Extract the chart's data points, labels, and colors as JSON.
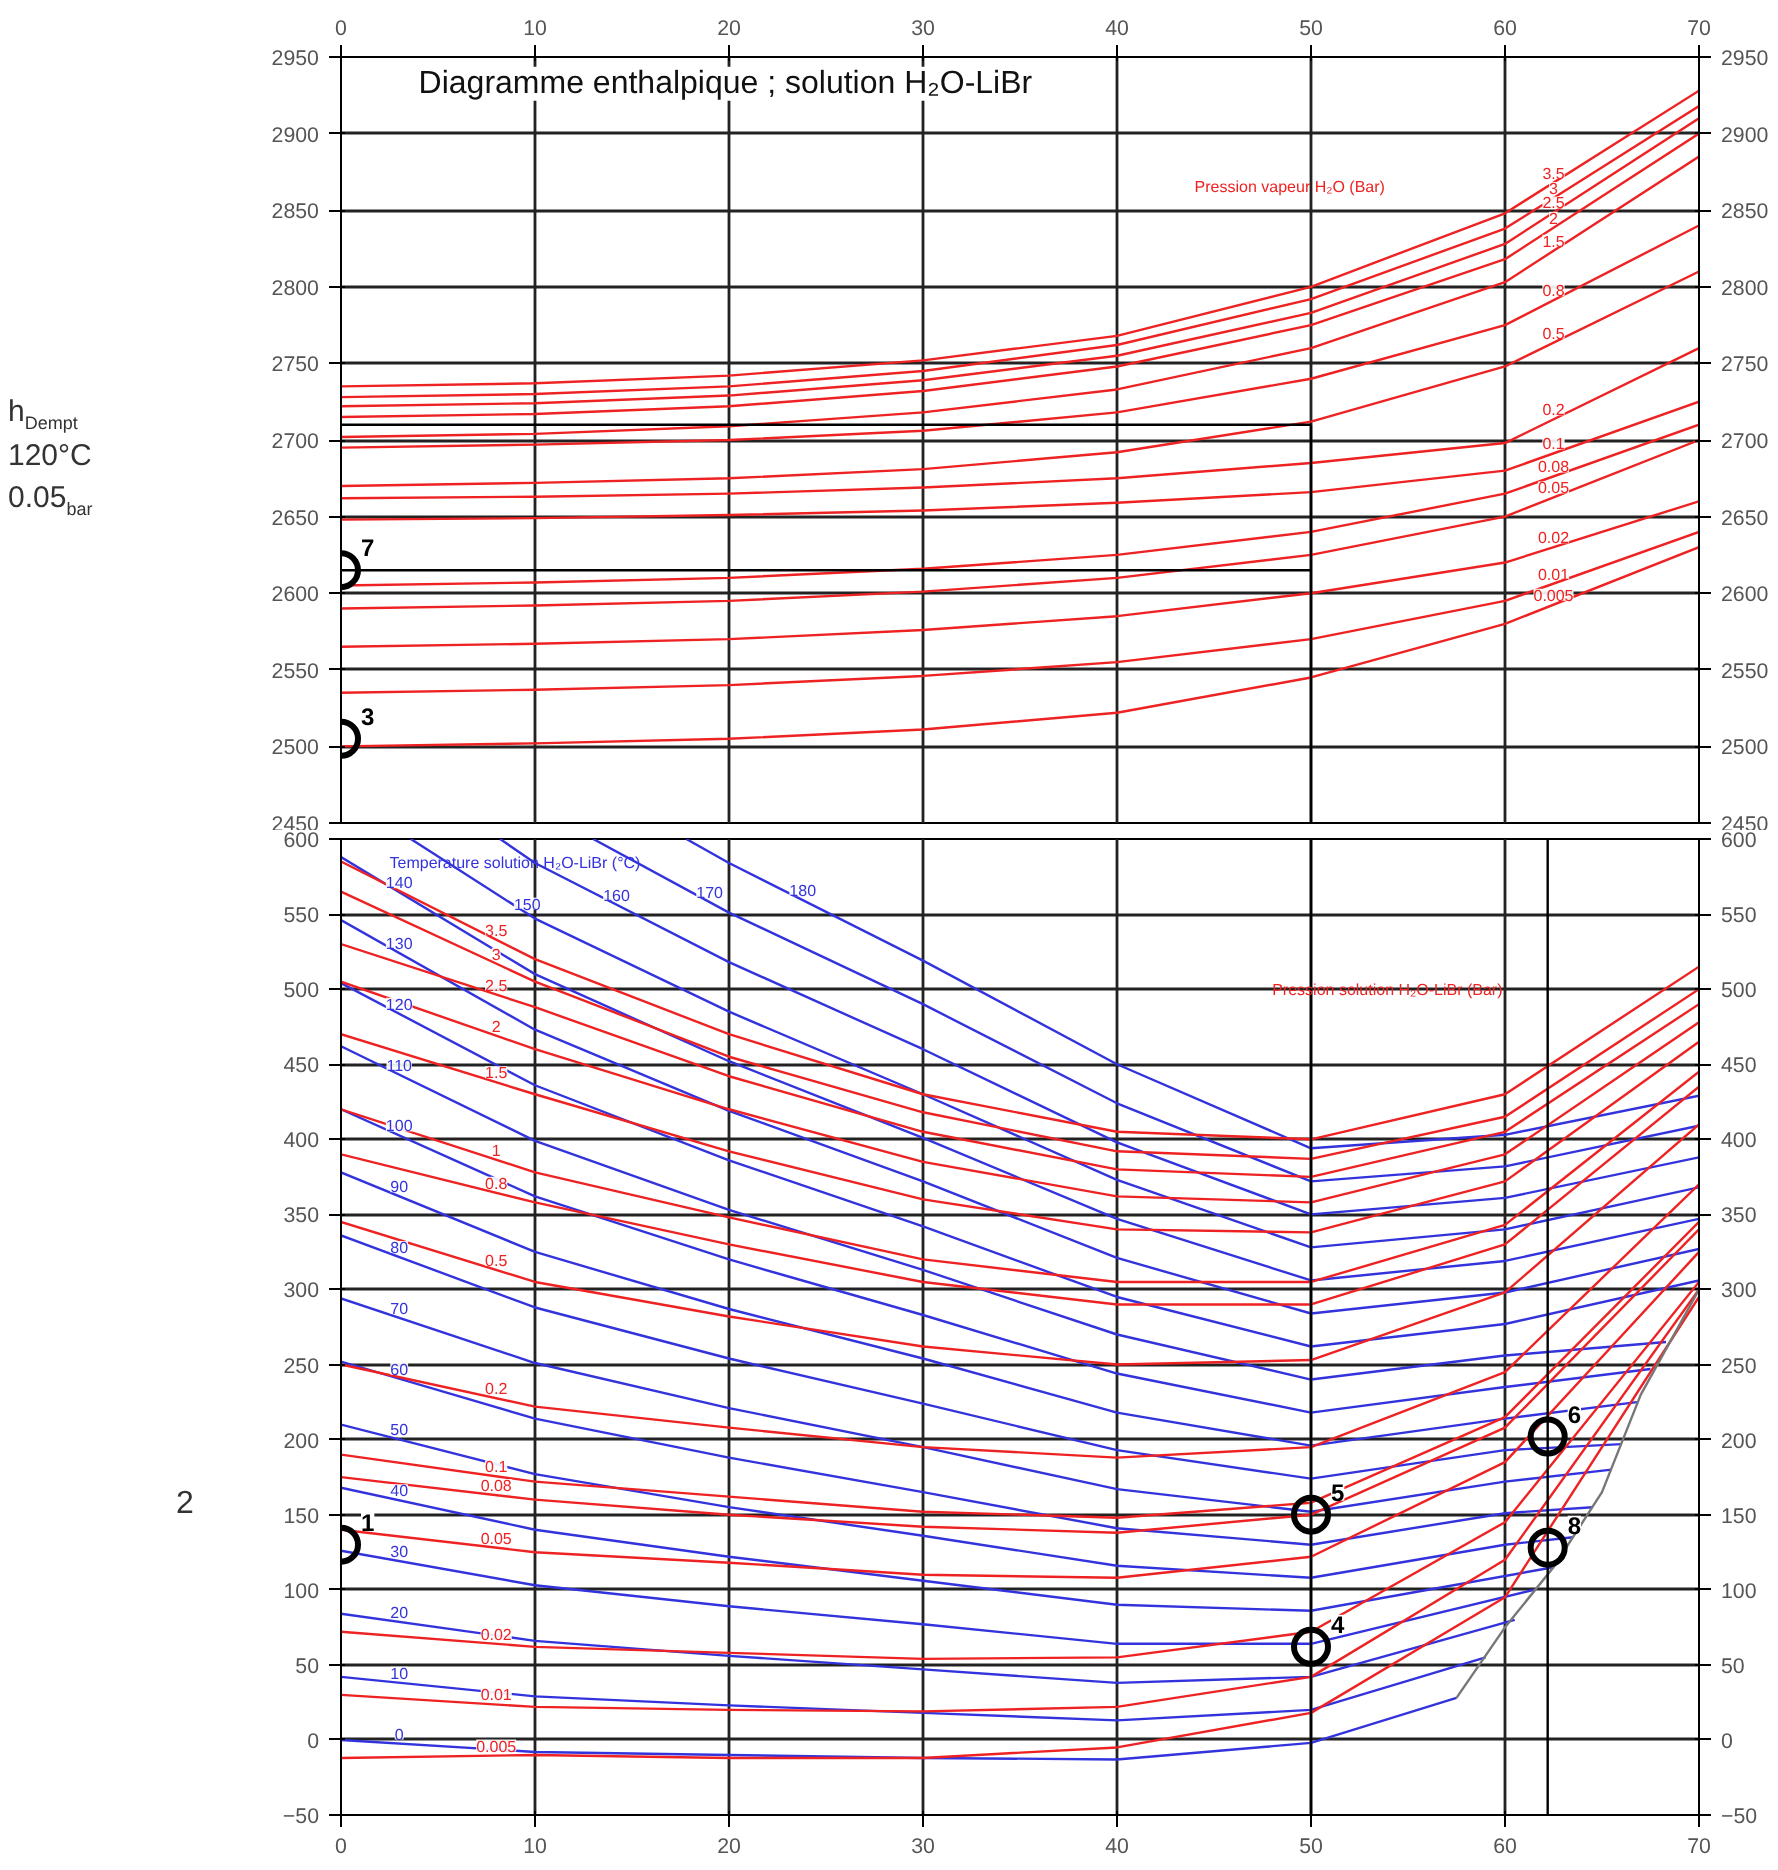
{
  "chart_data": [
    {
      "type": "line",
      "title": "Diagramme enthalpique ; solution H₂O-LiBr",
      "xlim": [
        0,
        70
      ],
      "x2lim": [
        0,
        70
      ],
      "x2ticks": [
        0,
        10,
        20,
        30,
        40,
        50,
        60,
        70
      ],
      "ylim": [
        2450,
        2950
      ],
      "yticks": [
        2450,
        2500,
        2550,
        2600,
        2650,
        2700,
        2750,
        2800,
        2850,
        2900,
        2950
      ],
      "y2lim": [
        2450,
        2950
      ],
      "y2ticks": [
        2450,
        2500,
        2550,
        2600,
        2650,
        2700,
        2750,
        2800,
        2850,
        2900,
        2950
      ],
      "tick_labels": "y",
      "grid": true,
      "series": [
        {
          "name": "3.5",
          "color": "#ee2222",
          "x": [
            0,
            10,
            20,
            30,
            40,
            50,
            60,
            70
          ],
          "values": [
            2735,
            2737,
            2742,
            2752,
            2768,
            2800,
            2848,
            2928
          ]
        },
        {
          "name": "3",
          "color": "#ee2222",
          "x": [
            0,
            10,
            20,
            30,
            40,
            50,
            60,
            70
          ],
          "values": [
            2728,
            2730,
            2735,
            2745,
            2762,
            2792,
            2838,
            2918
          ]
        },
        {
          "name": "2.5",
          "color": "#ee2222",
          "x": [
            0,
            10,
            20,
            30,
            40,
            50,
            60,
            70
          ],
          "values": [
            2722,
            2724,
            2729,
            2739,
            2755,
            2783,
            2828,
            2910
          ]
        },
        {
          "name": "2",
          "color": "#ee2222",
          "x": [
            0,
            10,
            20,
            30,
            40,
            50,
            60,
            70
          ],
          "values": [
            2715,
            2717,
            2722,
            2732,
            2748,
            2775,
            2818,
            2900
          ]
        },
        {
          "name": "1.5",
          "color": "#ee2222",
          "x": [
            0,
            10,
            20,
            30,
            40,
            50,
            60,
            70
          ],
          "values": [
            2702,
            2704,
            2709,
            2718,
            2733,
            2760,
            2803,
            2885
          ]
        },
        {
          "name": "0.8",
          "color": "#ee2222",
          "x": [
            0,
            10,
            20,
            30,
            40,
            50,
            60,
            70
          ],
          "values": [
            2695,
            2697,
            2700,
            2706,
            2718,
            2740,
            2775,
            2840
          ]
        },
        {
          "name": "0.5",
          "color": "#ee2222",
          "x": [
            0,
            10,
            20,
            30,
            40,
            50,
            60,
            70
          ],
          "values": [
            2670,
            2672,
            2675,
            2681,
            2692,
            2712,
            2748,
            2810
          ]
        },
        {
          "name": "0.2",
          "color": "#ee2222",
          "x": [
            0,
            10,
            20,
            30,
            40,
            50,
            60,
            70
          ],
          "values": [
            2662,
            2663,
            2665,
            2669,
            2675,
            2685,
            2698,
            2760
          ]
        },
        {
          "name": "0.1",
          "color": "#ee2222",
          "x": [
            0,
            10,
            20,
            30,
            40,
            50,
            60,
            70
          ],
          "values": [
            2648,
            2649,
            2651,
            2654,
            2659,
            2666,
            2680,
            2725
          ]
        },
        {
          "name": "0.08",
          "color": "#ee2222",
          "x": [
            0,
            10,
            20,
            30,
            40,
            50,
            60,
            70
          ],
          "values": [
            2605,
            2607,
            2610,
            2616,
            2625,
            2640,
            2665,
            2710
          ]
        },
        {
          "name": "0.05",
          "color": "#ee2222",
          "x": [
            0,
            10,
            20,
            30,
            40,
            50,
            60,
            70
          ],
          "values": [
            2590,
            2592,
            2595,
            2601,
            2610,
            2625,
            2650,
            2700
          ]
        },
        {
          "name": "0.02",
          "color": "#ee2222",
          "x": [
            0,
            10,
            20,
            30,
            40,
            50,
            60,
            70
          ],
          "values": [
            2565,
            2567,
            2570,
            2576,
            2585,
            2600,
            2620,
            2660
          ]
        },
        {
          "name": "0.01",
          "color": "#ee2222",
          "x": [
            0,
            10,
            20,
            30,
            40,
            50,
            60,
            70
          ],
          "values": [
            2535,
            2537,
            2540,
            2546,
            2555,
            2570,
            2595,
            2640
          ]
        },
        {
          "name": "0.005",
          "color": "#ee2222",
          "x": [
            0,
            10,
            20,
            30,
            40,
            50,
            60,
            70
          ],
          "values": [
            2500,
            2502,
            2505,
            2511,
            2522,
            2545,
            2580,
            2630
          ]
        },
        {
          "color": "#000000",
          "x": [
            0,
            50
          ],
          "values": [
            2615,
            2615
          ]
        },
        {
          "color": "#000000",
          "x": [
            0,
            50
          ],
          "values": [
            2710,
            2710
          ]
        },
        {
          "color": "#000000",
          "x": [
            50,
            50
          ],
          "values": [
            2710,
            2450
          ]
        }
      ],
      "annotations": [
        {
          "text": "7",
          "x": 0,
          "y": 2615
        },
        {
          "text": "3",
          "x": 0,
          "y": 2505
        },
        "Pression vapeur H₂O (Bar)",
        "h$_{Dempt}$",
        "120°C",
        "0.05$_{bar}$"
      ]
    },
    {
      "type": "line",
      "xlim": [
        0,
        70
      ],
      "xticks": [
        0,
        10,
        20,
        30,
        40,
        50,
        60,
        70
      ],
      "ylim": [
        -50,
        600
      ],
      "yticks": [
        -50,
        0,
        50,
        100,
        150,
        200,
        250,
        300,
        350,
        400,
        450,
        500,
        550,
        600
      ],
      "y2lim": [
        -50,
        600
      ],
      "y2ticks": [
        -50,
        0,
        50,
        100,
        150,
        200,
        250,
        300,
        350,
        400,
        450,
        500,
        550,
        600
      ],
      "grid": true,
      "series": [
        {
          "name": "0",
          "color": "#3333dd",
          "x": [
            0,
            10,
            20,
            30,
            40,
            50,
            57.5
          ],
          "values": [
            0,
            -8,
            -10,
            -12,
            -13,
            -2,
            28
          ]
        },
        {
          "name": "10",
          "color": "#3333dd",
          "x": [
            0,
            10,
            20,
            30,
            40,
            50,
            59
          ],
          "values": [
            42,
            29,
            23,
            18,
            13,
            20,
            55
          ]
        },
        {
          "name": "20",
          "color": "#3333dd",
          "x": [
            0,
            10,
            20,
            30,
            40,
            50,
            60.5
          ],
          "values": [
            84,
            66,
            56,
            47,
            38,
            42,
            80
          ]
        },
        {
          "name": "30",
          "color": "#3333dd",
          "x": [
            0,
            10,
            20,
            30,
            40,
            50,
            61.5
          ],
          "values": [
            126,
            103,
            89,
            77,
            64,
            64,
            100
          ]
        },
        {
          "name": "40",
          "color": "#3333dd",
          "x": [
            0,
            10,
            20,
            30,
            40,
            50,
            62.5
          ],
          "values": [
            168,
            140,
            122,
            106,
            90,
            86,
            115
          ]
        },
        {
          "name": "50",
          "color": "#3333dd",
          "x": [
            0,
            10,
            20,
            30,
            40,
            50,
            60,
            63.5
          ],
          "values": [
            210,
            177,
            155,
            136,
            116,
            108,
            130,
            135
          ]
        },
        {
          "name": "60",
          "color": "#3333dd",
          "x": [
            0,
            10,
            20,
            30,
            40,
            50,
            60,
            64.5
          ],
          "values": [
            252,
            214,
            188,
            165,
            141,
            130,
            151,
            155
          ]
        },
        {
          "name": "70",
          "color": "#3333dd",
          "x": [
            0,
            10,
            20,
            30,
            40,
            50,
            60,
            65.5
          ],
          "values": [
            294,
            251,
            221,
            195,
            167,
            152,
            172,
            180
          ]
        },
        {
          "name": "80",
          "color": "#3333dd",
          "x": [
            0,
            10,
            20,
            30,
            40,
            50,
            60,
            66
          ],
          "values": [
            336,
            288,
            254,
            224,
            193,
            174,
            193,
            197
          ]
        },
        {
          "name": "90",
          "color": "#3333dd",
          "x": [
            0,
            10,
            20,
            30,
            40,
            50,
            60,
            66.8
          ],
          "values": [
            378,
            325,
            287,
            254,
            218,
            196,
            214,
            225
          ]
        },
        {
          "name": "100",
          "color": "#3333dd",
          "x": [
            0,
            10,
            20,
            30,
            40,
            50,
            60,
            67.5
          ],
          "values": [
            420,
            362,
            320,
            283,
            244,
            218,
            235,
            247
          ]
        },
        {
          "name": "110",
          "color": "#3333dd",
          "x": [
            0,
            10,
            20,
            30,
            40,
            50,
            60,
            68.3
          ],
          "values": [
            462,
            399,
            353,
            313,
            270,
            240,
            256,
            265
          ]
        },
        {
          "name": "120",
          "color": "#3333dd",
          "x": [
            0,
            10,
            20,
            30,
            40,
            50,
            60,
            70
          ],
          "values": [
            504,
            436,
            386,
            342,
            295,
            262,
            277,
            306
          ]
        },
        {
          "name": "130",
          "color": "#3333dd",
          "x": [
            0,
            10,
            20,
            30,
            40,
            50,
            60,
            70
          ],
          "values": [
            546,
            473,
            419,
            372,
            321,
            284,
            298,
            327
          ]
        },
        {
          "name": "140",
          "color": "#3333dd",
          "x": [
            0,
            10,
            20,
            30,
            40,
            50,
            60,
            70
          ],
          "values": [
            588,
            510,
            452,
            401,
            347,
            306,
            319,
            347
          ]
        },
        {
          "name": "150",
          "color": "#3333dd",
          "x": [
            3.6,
            10,
            20,
            30,
            40,
            50,
            60,
            70
          ],
          "values": [
            600,
            547,
            485,
            430,
            373,
            328,
            340,
            368
          ]
        },
        {
          "name": "160",
          "color": "#3333dd",
          "x": [
            8.2,
            10,
            20,
            30,
            40,
            50,
            60,
            70
          ],
          "values": [
            600,
            584,
            518,
            460,
            398,
            350,
            361,
            388
          ]
        },
        {
          "name": "170",
          "color": "#3333dd",
          "x": [
            13,
            20,
            30,
            40,
            50,
            60,
            70
          ],
          "values": [
            600,
            551,
            490,
            424,
            372,
            382,
            409
          ]
        },
        {
          "name": "180",
          "color": "#3333dd",
          "x": [
            17.8,
            20,
            30,
            40,
            50,
            60,
            70
          ],
          "values": [
            600,
            584,
            519,
            450,
            394,
            403,
            429
          ]
        },
        {
          "name": "3.5",
          "color": "#ee2222",
          "x": [
            0,
            10,
            20,
            30,
            40,
            50,
            60,
            70
          ],
          "values": [
            585,
            520,
            470,
            430,
            405,
            400,
            430,
            515
          ]
        },
        {
          "name": "3",
          "color": "#ee2222",
          "x": [
            0,
            10,
            20,
            30,
            40,
            50,
            60,
            70
          ],
          "values": [
            565,
            505,
            455,
            418,
            392,
            387,
            415,
            500
          ]
        },
        {
          "name": "2.5",
          "color": "#ee2222",
          "x": [
            0,
            10,
            20,
            30,
            40,
            50,
            60,
            70
          ],
          "values": [
            530,
            488,
            442,
            405,
            380,
            375,
            405,
            490
          ]
        },
        {
          "name": "2",
          "color": "#ee2222",
          "x": [
            0,
            10,
            20,
            30,
            40,
            50,
            60,
            70
          ],
          "values": [
            505,
            460,
            420,
            385,
            362,
            358,
            390,
            478
          ]
        },
        {
          "name": "1.5",
          "color": "#ee2222",
          "x": [
            0,
            10,
            20,
            30,
            40,
            50,
            60,
            70
          ],
          "values": [
            470,
            430,
            392,
            360,
            340,
            338,
            372,
            465
          ]
        },
        {
          "name": "1",
          "color": "#ee2222",
          "x": [
            0,
            10,
            20,
            30,
            40,
            50,
            60,
            70
          ],
          "values": [
            420,
            378,
            348,
            320,
            305,
            305,
            343,
            445
          ]
        },
        {
          "name": "0.8",
          "color": "#ee2222",
          "x": [
            0,
            10,
            20,
            30,
            40,
            50,
            60,
            70
          ],
          "values": [
            390,
            358,
            330,
            305,
            290,
            290,
            330,
            435
          ]
        },
        {
          "name": "0.5",
          "color": "#ee2222",
          "x": [
            0,
            10,
            20,
            30,
            40,
            50,
            60,
            70
          ],
          "values": [
            345,
            305,
            282,
            262,
            250,
            253,
            298,
            410
          ]
        },
        {
          "name": "0.2",
          "color": "#ee2222",
          "x": [
            0,
            10,
            20,
            30,
            40,
            50,
            60,
            70
          ],
          "values": [
            250,
            222,
            208,
            195,
            188,
            195,
            245,
            370
          ]
        },
        {
          "name": "0.1",
          "color": "#ee2222",
          "x": [
            0,
            10,
            20,
            30,
            40,
            50,
            60,
            70
          ],
          "values": [
            190,
            172,
            162,
            152,
            148,
            158,
            215,
            345
          ]
        },
        {
          "name": "0.08",
          "color": "#ee2222",
          "x": [
            0,
            10,
            20,
            30,
            40,
            50,
            60,
            70
          ],
          "values": [
            175,
            160,
            150,
            142,
            138,
            150,
            208,
            340
          ]
        },
        {
          "name": "0.05",
          "color": "#ee2222",
          "x": [
            0,
            10,
            20,
            30,
            40,
            50,
            60,
            70
          ],
          "values": [
            140,
            125,
            118,
            110,
            108,
            122,
            185,
            325
          ]
        },
        {
          "name": "0.02",
          "color": "#ee2222",
          "x": [
            0,
            10,
            20,
            30,
            40,
            50,
            60,
            70
          ],
          "values": [
            72,
            62,
            58,
            54,
            55,
            72,
            145,
            305
          ]
        },
        {
          "name": "0.01",
          "color": "#ee2222",
          "x": [
            0,
            10,
            20,
            30,
            40,
            50,
            60,
            70
          ],
          "values": [
            30,
            22,
            20,
            19,
            22,
            42,
            120,
            300
          ]
        },
        {
          "name": "0.005",
          "color": "#ee2222",
          "x": [
            0,
            10,
            20,
            30,
            40,
            50,
            60,
            70
          ],
          "values": [
            -12,
            -10,
            -12,
            -12,
            -5,
            18,
            95,
            295
          ]
        },
        {
          "color": "#777777",
          "x": [
            57.5,
            60,
            62.5,
            65,
            67,
            70
          ],
          "values": [
            28,
            75,
            115,
            165,
            230,
            300
          ]
        },
        {
          "color": "#000000",
          "x": [
            50,
            50
          ],
          "values": [
            600,
            -50
          ]
        },
        {
          "color": "#000000",
          "x": [
            62.2,
            62.2
          ],
          "values": [
            600,
            -50
          ]
        }
      ],
      "annotations": [
        {
          "text": "1",
          "x": 0,
          "y": 130
        },
        {
          "text": "5",
          "x": 50,
          "y": 150
        },
        {
          "text": "4",
          "x": 50,
          "y": 62
        },
        {
          "text": "6",
          "x": 62.2,
          "y": 202
        },
        {
          "text": "8",
          "x": 62.2,
          "y": 128
        },
        "Temperature solution H₂O-LiBr (°C)",
        "Pression solution H₂O-LiBr (Bar)",
        "2"
      ]
    }
  ]
}
